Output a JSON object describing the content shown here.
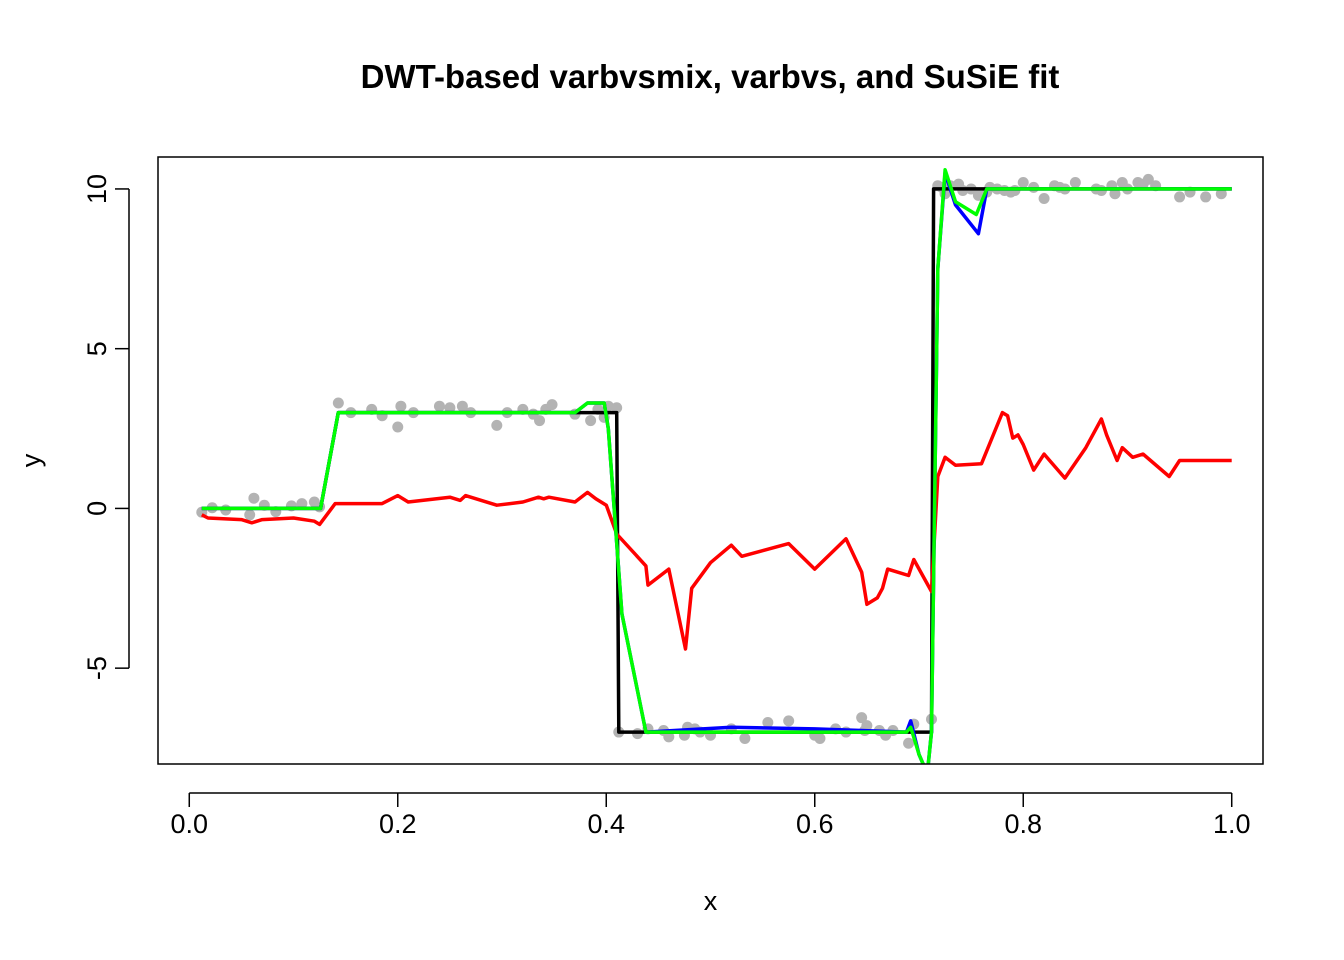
{
  "chart_data": {
    "type": "line",
    "title": "DWT-based varbvsmix, varbvs, and SuSiE fit",
    "xlabel": "x",
    "ylabel": "y",
    "xlim": [
      -0.03,
      1.03
    ],
    "ylim": [
      -8,
      11
    ],
    "x_ticks": [
      0.0,
      0.2,
      0.4,
      0.6,
      0.8,
      1.0
    ],
    "x_tick_labels": [
      "0.0",
      "0.2",
      "0.4",
      "0.6",
      "0.8",
      "1.0"
    ],
    "y_ticks": [
      -5,
      0,
      5,
      10
    ],
    "y_tick_labels": [
      "-5",
      "0",
      "5",
      "10"
    ],
    "grid": false,
    "legend": "none",
    "colors": {
      "points": "#b3b3b3",
      "truth": "#000000",
      "varbvsmix": "#0000ff",
      "varbvs": "#ff0000",
      "susie": "#00ff00"
    },
    "points": [
      [
        0.012,
        -0.12
      ],
      [
        0.022,
        0.02
      ],
      [
        0.035,
        -0.05
      ],
      [
        0.058,
        -0.2
      ],
      [
        0.062,
        0.32
      ],
      [
        0.072,
        0.1
      ],
      [
        0.083,
        -0.1
      ],
      [
        0.098,
        0.08
      ],
      [
        0.108,
        0.15
      ],
      [
        0.12,
        0.2
      ],
      [
        0.125,
        0.05
      ],
      [
        0.143,
        3.3
      ],
      [
        0.155,
        3.0
      ],
      [
        0.175,
        3.1
      ],
      [
        0.185,
        2.9
      ],
      [
        0.2,
        2.55
      ],
      [
        0.203,
        3.2
      ],
      [
        0.215,
        3.0
      ],
      [
        0.24,
        3.2
      ],
      [
        0.25,
        3.15
      ],
      [
        0.262,
        3.2
      ],
      [
        0.27,
        3.0
      ],
      [
        0.295,
        2.6
      ],
      [
        0.305,
        3.0
      ],
      [
        0.32,
        3.1
      ],
      [
        0.33,
        2.95
      ],
      [
        0.336,
        2.75
      ],
      [
        0.342,
        3.1
      ],
      [
        0.348,
        3.25
      ],
      [
        0.37,
        2.95
      ],
      [
        0.385,
        2.75
      ],
      [
        0.392,
        3.1
      ],
      [
        0.398,
        2.85
      ],
      [
        0.402,
        3.2
      ],
      [
        0.41,
        3.15
      ],
      [
        0.412,
        -7.0
      ],
      [
        0.43,
        -7.05
      ],
      [
        0.44,
        -6.9
      ],
      [
        0.455,
        -6.95
      ],
      [
        0.46,
        -7.15
      ],
      [
        0.475,
        -7.1
      ],
      [
        0.478,
        -6.85
      ],
      [
        0.485,
        -6.9
      ],
      [
        0.49,
        -7.0
      ],
      [
        0.5,
        -7.1
      ],
      [
        0.52,
        -6.9
      ],
      [
        0.533,
        -7.2
      ],
      [
        0.555,
        -6.7
      ],
      [
        0.575,
        -6.65
      ],
      [
        0.6,
        -7.1
      ],
      [
        0.605,
        -7.2
      ],
      [
        0.62,
        -6.9
      ],
      [
        0.63,
        -7.0
      ],
      [
        0.645,
        -6.55
      ],
      [
        0.648,
        -6.95
      ],
      [
        0.65,
        -6.8
      ],
      [
        0.662,
        -6.95
      ],
      [
        0.668,
        -7.1
      ],
      [
        0.675,
        -6.95
      ],
      [
        0.69,
        -7.35
      ],
      [
        0.695,
        -6.75
      ],
      [
        0.712,
        -6.6
      ],
      [
        0.718,
        10.1
      ],
      [
        0.722,
        10.05
      ],
      [
        0.725,
        9.85
      ],
      [
        0.73,
        10.1
      ],
      [
        0.738,
        10.15
      ],
      [
        0.742,
        9.95
      ],
      [
        0.75,
        10.0
      ],
      [
        0.757,
        9.8
      ],
      [
        0.765,
        9.9
      ],
      [
        0.768,
        10.05
      ],
      [
        0.775,
        10.0
      ],
      [
        0.782,
        9.95
      ],
      [
        0.788,
        9.9
      ],
      [
        0.792,
        9.95
      ],
      [
        0.8,
        10.2
      ],
      [
        0.81,
        10.05
      ],
      [
        0.82,
        9.7
      ],
      [
        0.83,
        10.1
      ],
      [
        0.835,
        10.05
      ],
      [
        0.84,
        10.0
      ],
      [
        0.85,
        10.2
      ],
      [
        0.87,
        10.0
      ],
      [
        0.875,
        9.95
      ],
      [
        0.885,
        10.1
      ],
      [
        0.888,
        9.85
      ],
      [
        0.895,
        10.2
      ],
      [
        0.9,
        10.0
      ],
      [
        0.91,
        10.2
      ],
      [
        0.915,
        10.15
      ],
      [
        0.92,
        10.3
      ],
      [
        0.927,
        10.1
      ],
      [
        0.95,
        9.75
      ],
      [
        0.96,
        9.9
      ],
      [
        0.975,
        9.75
      ],
      [
        0.99,
        9.85
      ]
    ],
    "series": [
      {
        "color_key": "truth",
        "x": [
          0.012,
          0.126,
          0.143,
          0.41,
          0.412,
          0.712,
          0.714,
          1.0
        ],
        "y": [
          0,
          0,
          3,
          3,
          -7,
          -7,
          10,
          10
        ]
      },
      {
        "color_key": "varbvs",
        "x": [
          0.012,
          0.018,
          0.05,
          0.06,
          0.07,
          0.1,
          0.12,
          0.125,
          0.14,
          0.185,
          0.2,
          0.21,
          0.25,
          0.26,
          0.265,
          0.295,
          0.32,
          0.335,
          0.34,
          0.345,
          0.37,
          0.382,
          0.39,
          0.4,
          0.41,
          0.438,
          0.44,
          0.46,
          0.476,
          0.482,
          0.5,
          0.52,
          0.53,
          0.575,
          0.6,
          0.63,
          0.645,
          0.65,
          0.66,
          0.665,
          0.67,
          0.69,
          0.695,
          0.712,
          0.718,
          0.725,
          0.735,
          0.76,
          0.78,
          0.785,
          0.79,
          0.795,
          0.8,
          0.81,
          0.82,
          0.84,
          0.86,
          0.875,
          0.88,
          0.89,
          0.895,
          0.905,
          0.915,
          0.94,
          0.95,
          1.0
        ],
        "y": [
          -0.2,
          -0.3,
          -0.35,
          -0.45,
          -0.35,
          -0.3,
          -0.4,
          -0.5,
          0.15,
          0.15,
          0.4,
          0.2,
          0.35,
          0.25,
          0.4,
          0.1,
          0.2,
          0.35,
          0.3,
          0.35,
          0.2,
          0.5,
          0.3,
          0.1,
          -0.8,
          -1.8,
          -2.4,
          -1.9,
          -4.4,
          -2.5,
          -1.7,
          -1.15,
          -1.5,
          -1.1,
          -1.9,
          -0.95,
          -2.0,
          -3.0,
          -2.8,
          -2.5,
          -1.9,
          -2.1,
          -1.6,
          -2.6,
          1.0,
          1.6,
          1.35,
          1.4,
          3.0,
          2.9,
          2.2,
          2.3,
          2.0,
          1.2,
          1.7,
          0.95,
          1.9,
          2.8,
          2.3,
          1.5,
          1.9,
          1.6,
          1.7,
          1.0,
          1.5,
          1.5
        ]
      },
      {
        "color_key": "varbvsmix",
        "x": [
          0.012,
          0.126,
          0.143,
          0.37,
          0.382,
          0.398,
          0.402,
          0.415,
          0.438,
          0.52,
          0.6,
          0.688,
          0.692,
          0.7,
          0.708,
          0.712,
          0.718,
          0.725,
          0.735,
          0.757,
          0.765,
          1.0
        ],
        "y": [
          0,
          0,
          3,
          3,
          3.3,
          3.3,
          2.5,
          -3.3,
          -7,
          -6.85,
          -6.9,
          -7,
          -6.65,
          -7.7,
          -8.3,
          -7,
          7.5,
          10.5,
          9.5,
          8.6,
          10,
          10
        ]
      },
      {
        "color_key": "susie",
        "x": [
          0.012,
          0.126,
          0.143,
          0.37,
          0.382,
          0.398,
          0.402,
          0.415,
          0.438,
          0.688,
          0.692,
          0.7,
          0.708,
          0.712,
          0.718,
          0.725,
          0.735,
          0.755,
          0.765,
          1.0
        ],
        "y": [
          0,
          0,
          3,
          3,
          3.3,
          3.3,
          2.5,
          -3.3,
          -7,
          -7,
          -6.85,
          -7.7,
          -8.3,
          -7,
          7.5,
          10.6,
          9.6,
          9.2,
          10,
          10
        ]
      }
    ]
  }
}
